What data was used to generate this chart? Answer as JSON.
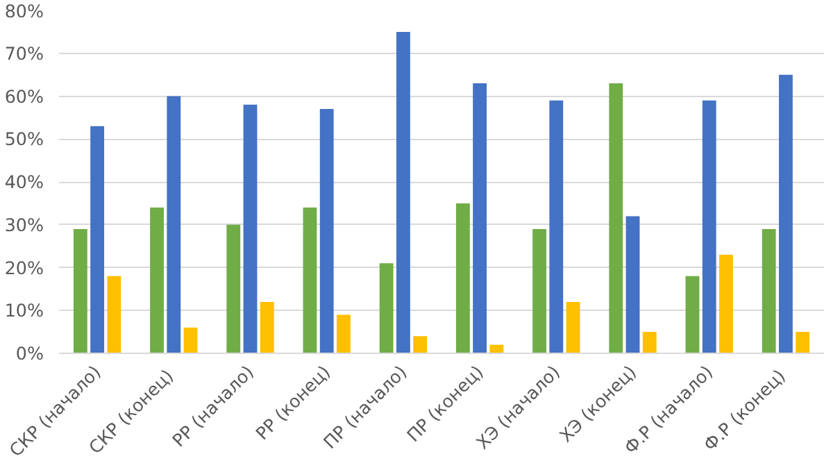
{
  "chart_data": {
    "type": "bar",
    "categories": [
      "СКР (начало)",
      "СКР  (конец)",
      "РР (начало)",
      "РР (конец)",
      "ПР (начало)",
      "ПР (конец)",
      "ХЭ (начало)",
      "ХЭ (конец)",
      "Ф.Р (начало)",
      "Ф.Р  (конец)"
    ],
    "series": [
      {
        "color": "#70ad47",
        "values": [
          29,
          34,
          30,
          34,
          21,
          35,
          29,
          63,
          18,
          29
        ]
      },
      {
        "color": "#4472c4",
        "values": [
          53,
          60,
          58,
          57,
          75,
          63,
          59,
          32,
          59,
          65
        ]
      },
      {
        "color": "#ffc000",
        "values": [
          18,
          6,
          12,
          9,
          4,
          2,
          12,
          5,
          23,
          5
        ]
      }
    ],
    "ylim": [
      0,
      80
    ],
    "yticks": [
      {
        "value": 0,
        "label": "0%"
      },
      {
        "value": 10,
        "label": "10%"
      },
      {
        "value": 20,
        "label": "20%"
      },
      {
        "value": 30,
        "label": "30%"
      },
      {
        "value": 40,
        "label": "40%"
      },
      {
        "value": 50,
        "label": "50%"
      },
      {
        "value": 60,
        "label": "60%"
      },
      {
        "value": 70,
        "label": "70%"
      },
      {
        "value": 80,
        "label": "80%"
      }
    ],
    "grid": "y"
  }
}
